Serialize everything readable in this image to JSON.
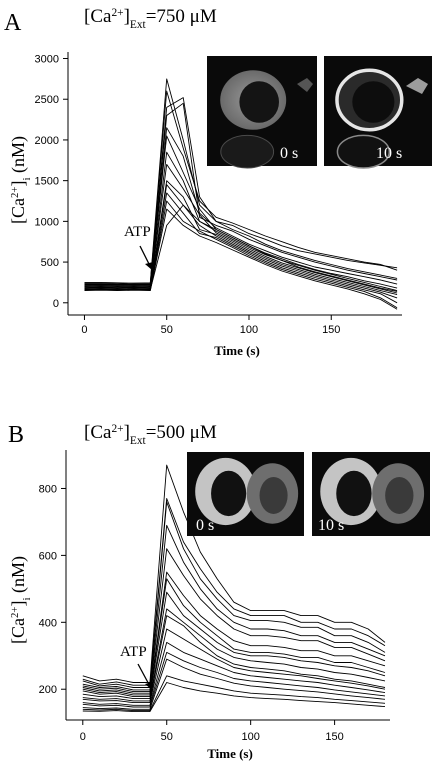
{
  "chart_data": [
    {
      "panel_label": "A",
      "title": {
        "base": "[Ca",
        "sup": "2+",
        "close": "]",
        "sub": "Ext",
        "value": "=750 μM"
      },
      "ylabel": {
        "base": "[Ca",
        "sup": "2+",
        "close": "]",
        "sub": "i",
        "unit": " (nM)"
      },
      "xlabel": "Time (s)",
      "type": "line",
      "xlim": [
        -10,
        193
      ],
      "ylim": [
        -150,
        3080
      ],
      "x_ticks": [
        0,
        50,
        100,
        150
      ],
      "y_ticks": [
        0,
        500,
        1000,
        1500,
        2000,
        2500,
        3000
      ],
      "annotation": {
        "text": "ATP",
        "x": 40,
        "y": 180
      },
      "insets": [
        {
          "label": "0 s",
          "kind": "calm"
        },
        {
          "label": "10 s",
          "kind": "bright"
        }
      ],
      "x": [
        0,
        10,
        20,
        30,
        40,
        50,
        60,
        70,
        80,
        90,
        100,
        110,
        120,
        130,
        140,
        150,
        160,
        170,
        180,
        190
      ],
      "series": [
        {
          "values": [
            250,
            250,
            245,
            240,
            245,
            2750,
            2000,
            1200,
            1000,
            950,
            850,
            780,
            700,
            640,
            600,
            560,
            520,
            490,
            460,
            430
          ]
        },
        {
          "values": [
            240,
            240,
            235,
            240,
            240,
            2600,
            1900,
            1250,
            1050,
            980,
            900,
            820,
            750,
            680,
            620,
            580,
            540,
            500,
            470,
            400
          ]
        },
        {
          "values": [
            230,
            230,
            225,
            230,
            230,
            2400,
            2520,
            1300,
            1000,
            900,
            820,
            720,
            640,
            580,
            520,
            470,
            420,
            380,
            340,
            300
          ]
        },
        {
          "values": [
            220,
            225,
            220,
            225,
            220,
            2300,
            2450,
            1050,
            950,
            880,
            780,
            700,
            620,
            560,
            500,
            450,
            400,
            360,
            320,
            280
          ]
        },
        {
          "values": [
            210,
            215,
            210,
            215,
            210,
            2150,
            1800,
            1100,
            920,
            820,
            720,
            640,
            560,
            500,
            440,
            400,
            360,
            320,
            280,
            230
          ]
        },
        {
          "values": [
            200,
            205,
            200,
            205,
            200,
            2050,
            1600,
            1150,
            900,
            800,
            700,
            610,
            540,
            470,
            410,
            360,
            320,
            270,
            230,
            180
          ]
        },
        {
          "values": [
            190,
            195,
            190,
            195,
            190,
            1850,
            1500,
            1000,
            880,
            780,
            680,
            590,
            520,
            460,
            400,
            350,
            300,
            250,
            200,
            150
          ]
        },
        {
          "values": [
            180,
            185,
            180,
            185,
            180,
            1700,
            1400,
            1080,
            860,
            760,
            660,
            570,
            490,
            430,
            370,
            320,
            270,
            220,
            170,
            120
          ]
        },
        {
          "values": [
            170,
            175,
            170,
            175,
            170,
            1500,
            1300,
            900,
            840,
            740,
            640,
            550,
            470,
            410,
            350,
            300,
            250,
            200,
            150,
            100
          ]
        },
        {
          "values": [
            165,
            170,
            165,
            170,
            165,
            1450,
            1200,
            950,
            820,
            720,
            620,
            530,
            450,
            390,
            330,
            280,
            230,
            180,
            130,
            60
          ]
        },
        {
          "values": [
            160,
            165,
            160,
            165,
            160,
            1350,
            1100,
            850,
            800,
            700,
            600,
            510,
            430,
            370,
            310,
            260,
            210,
            160,
            110,
            0
          ]
        },
        {
          "values": [
            155,
            160,
            155,
            160,
            155,
            1250,
            1000,
            880,
            780,
            680,
            580,
            490,
            410,
            350,
            290,
            240,
            190,
            140,
            60,
            -60
          ]
        },
        {
          "values": [
            150,
            155,
            150,
            155,
            150,
            1150,
            950,
            820,
            740,
            650,
            560,
            470,
            390,
            330,
            270,
            220,
            170,
            110,
            40,
            -80
          ]
        },
        {
          "values": [
            160,
            165,
            160,
            165,
            160,
            950,
            1200,
            1000,
            900,
            800,
            700,
            600,
            520,
            440,
            380,
            330,
            280,
            230,
            180,
            140
          ]
        }
      ]
    },
    {
      "panel_label": "B",
      "title": {
        "base": "[Ca",
        "sup": "2+",
        "close": "]",
        "sub": "Ext",
        "value": "=500 μM"
      },
      "ylabel": {
        "base": "[Ca",
        "sup": "2+",
        "close": "]",
        "sub": "i",
        "unit": " (nM)"
      },
      "xlabel": "Time (s)",
      "type": "line",
      "xlim": [
        -10,
        183
      ],
      "ylim": [
        108,
        915
      ],
      "x_ticks": [
        0,
        50,
        100,
        150
      ],
      "y_ticks": [
        200,
        400,
        600,
        800
      ],
      "annotation": {
        "text": "ATP",
        "x": 40,
        "y": 220
      },
      "insets": [
        {
          "label": "0 s",
          "kind": "calm"
        },
        {
          "label": "10 s",
          "kind": "calm"
        }
      ],
      "x": [
        0,
        10,
        20,
        30,
        40,
        50,
        60,
        70,
        80,
        90,
        100,
        110,
        120,
        130,
        140,
        150,
        160,
        170,
        180
      ],
      "series": [
        {
          "values": [
            240,
            225,
            230,
            220,
            220,
            870,
            730,
            610,
            530,
            460,
            435,
            435,
            435,
            420,
            420,
            400,
            400,
            380,
            340
          ]
        },
        {
          "values": [
            230,
            215,
            222,
            212,
            212,
            770,
            640,
            560,
            490,
            440,
            420,
            420,
            420,
            400,
            400,
            380,
            380,
            360,
            330
          ]
        },
        {
          "values": [
            225,
            210,
            215,
            205,
            205,
            760,
            620,
            530,
            470,
            420,
            405,
            405,
            400,
            385,
            385,
            360,
            360,
            340,
            310
          ]
        },
        {
          "values": [
            215,
            205,
            208,
            198,
            198,
            690,
            580,
            500,
            440,
            400,
            380,
            380,
            375,
            360,
            360,
            340,
            340,
            320,
            300
          ]
        },
        {
          "values": [
            210,
            200,
            203,
            193,
            193,
            620,
            540,
            470,
            420,
            380,
            360,
            360,
            355,
            345,
            345,
            325,
            325,
            305,
            285
          ]
        },
        {
          "values": [
            205,
            195,
            198,
            188,
            188,
            550,
            480,
            420,
            380,
            345,
            330,
            330,
            325,
            315,
            315,
            300,
            300,
            285,
            270
          ]
        },
        {
          "values": [
            200,
            190,
            193,
            183,
            183,
            530,
            450,
            400,
            360,
            320,
            310,
            310,
            305,
            295,
            295,
            280,
            280,
            265,
            250
          ]
        },
        {
          "values": [
            195,
            185,
            188,
            178,
            178,
            490,
            420,
            380,
            340,
            310,
            300,
            300,
            295,
            285,
            280,
            270,
            265,
            255,
            240
          ]
        },
        {
          "values": [
            185,
            178,
            180,
            172,
            172,
            440,
            400,
            360,
            320,
            295,
            285,
            280,
            275,
            265,
            260,
            250,
            245,
            235,
            225
          ]
        },
        {
          "values": [
            175,
            170,
            172,
            165,
            165,
            420,
            390,
            340,
            300,
            275,
            265,
            260,
            255,
            245,
            240,
            230,
            225,
            215,
            205
          ]
        },
        {
          "values": [
            170,
            165,
            166,
            160,
            160,
            380,
            350,
            320,
            290,
            265,
            255,
            250,
            245,
            240,
            232,
            225,
            218,
            210,
            200
          ]
        },
        {
          "values": [
            160,
            155,
            157,
            152,
            152,
            340,
            310,
            290,
            270,
            250,
            240,
            235,
            230,
            225,
            220,
            212,
            205,
            198,
            190
          ]
        },
        {
          "values": [
            155,
            150,
            152,
            147,
            147,
            310,
            285,
            265,
            250,
            232,
            225,
            220,
            215,
            210,
            205,
            198,
            192,
            186,
            180
          ]
        },
        {
          "values": [
            145,
            142,
            144,
            140,
            140,
            290,
            265,
            245,
            232,
            218,
            210,
            205,
            200,
            196,
            192,
            186,
            180,
            175,
            170
          ]
        },
        {
          "values": [
            140,
            138,
            140,
            136,
            136,
            240,
            225,
            215,
            205,
            195,
            188,
            185,
            182,
            178,
            175,
            170,
            166,
            162,
            158
          ]
        },
        {
          "values": [
            135,
            134,
            136,
            133,
            133,
            220,
            205,
            195,
            188,
            180,
            175,
            172,
            170,
            166,
            163,
            160,
            156,
            152,
            148
          ]
        }
      ]
    }
  ]
}
